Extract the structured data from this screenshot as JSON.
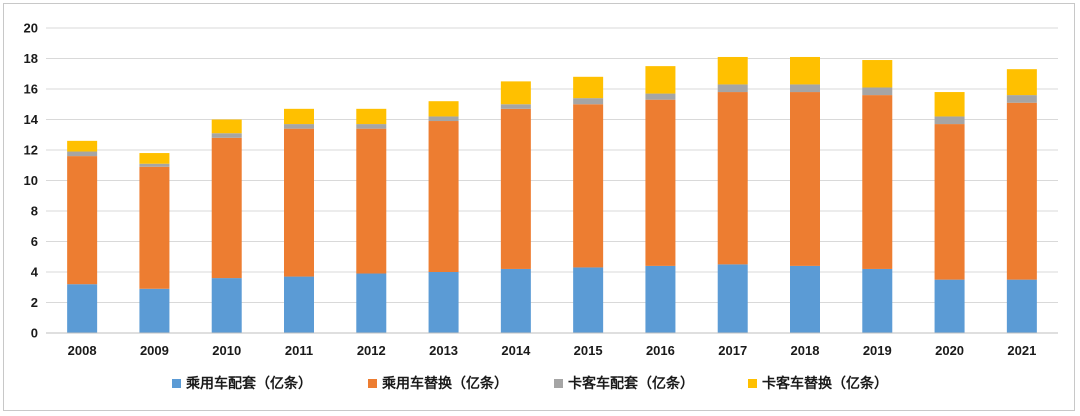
{
  "chart_data": {
    "type": "bar",
    "stacked": true,
    "categories": [
      "2008",
      "2009",
      "2010",
      "2011",
      "2012",
      "2013",
      "2014",
      "2015",
      "2016",
      "2017",
      "2018",
      "2019",
      "2020",
      "2021"
    ],
    "series": [
      {
        "name": "乘用车配套（亿条）",
        "color": "#5b9bd5",
        "values": [
          3.2,
          2.9,
          3.6,
          3.7,
          3.9,
          4.0,
          4.2,
          4.3,
          4.4,
          4.5,
          4.4,
          4.2,
          3.5,
          3.5
        ]
      },
      {
        "name": "乘用车替换（亿条）",
        "color": "#ed7d31",
        "values": [
          8.4,
          8.0,
          9.2,
          9.7,
          9.5,
          9.9,
          10.5,
          10.7,
          10.9,
          11.3,
          11.4,
          11.4,
          10.2,
          11.6
        ]
      },
      {
        "name": "卡客车配套（亿条）",
        "color": "#a5a5a5",
        "values": [
          0.3,
          0.2,
          0.3,
          0.3,
          0.3,
          0.3,
          0.3,
          0.4,
          0.4,
          0.5,
          0.5,
          0.5,
          0.5,
          0.5
        ]
      },
      {
        "name": "卡客车替换（亿条）",
        "color": "#ffc000",
        "values": [
          0.7,
          0.7,
          0.9,
          1.0,
          1.0,
          1.0,
          1.5,
          1.4,
          1.8,
          1.8,
          1.8,
          1.8,
          1.6,
          1.7
        ]
      }
    ],
    "ylim": [
      0,
      20
    ],
    "yticks": [
      0,
      2,
      4,
      6,
      8,
      10,
      12,
      14,
      16,
      18,
      20
    ],
    "title": "",
    "xlabel": "",
    "ylabel": "",
    "grid": true,
    "legend_position": "bottom"
  }
}
